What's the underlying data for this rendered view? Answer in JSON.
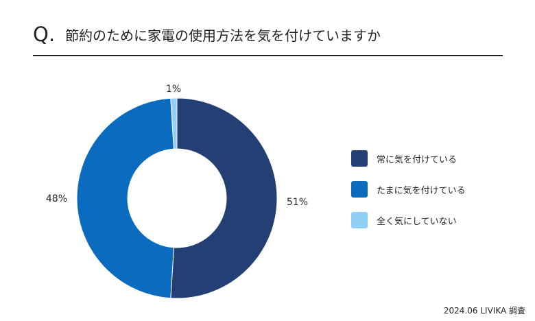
{
  "header": {
    "q_mark": "Q.",
    "question": "節約のために家電の使用方法を気を付けていますか"
  },
  "chart_data": {
    "type": "pie",
    "variant": "donut",
    "title": "節約のために家電の使用方法を気を付けていますか",
    "categories": [
      "常に気を付けている",
      "たまに気を付けている",
      "全く気にしていない"
    ],
    "values": [
      51,
      48,
      1
    ],
    "value_labels": [
      "51%",
      "48%",
      "1%"
    ],
    "unit": "%",
    "colors": [
      "#233f73",
      "#0b6bbf",
      "#8fd0f4"
    ],
    "legend_position": "right",
    "start_angle": "12 o'clock",
    "direction": "clockwise"
  },
  "legend": {
    "items": [
      {
        "label": "常に気を付けている",
        "color": "#233f73"
      },
      {
        "label": "たまに気を付けている",
        "color": "#0b6bbf"
      },
      {
        "label": "全く気にしていない",
        "color": "#8fd0f4"
      }
    ]
  },
  "footer": {
    "source": "2024.06 LIVIKA 調査"
  }
}
